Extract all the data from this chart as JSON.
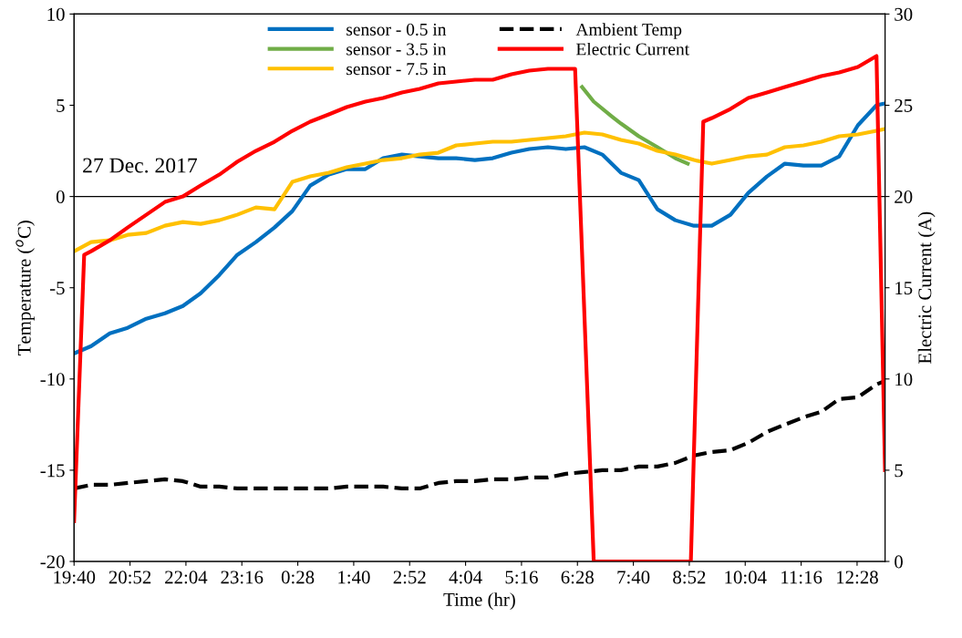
{
  "chart_data": {
    "type": "line",
    "xlabel": "Time (hr)",
    "ylabel": "Temperature ($^{o}$C)",
    "y2label": "Electric Current (A)",
    "annotations": [
      "27 Dec. 2017"
    ],
    "xlim": [
      "2017-12-27T19:40",
      "2017-12-28T13:04"
    ],
    "xticks": [
      {
        "value": "2017-12-27T19:40",
        "label": "19:40"
      },
      {
        "value": "2017-12-27T20:52",
        "label": "20:52"
      },
      {
        "value": "2017-12-27T22:04",
        "label": "22:04"
      },
      {
        "value": "2017-12-27T23:16",
        "label": "23:16"
      },
      {
        "value": "2017-12-28T00:28",
        "label": "0:28"
      },
      {
        "value": "2017-12-28T01:40",
        "label": "1:40"
      },
      {
        "value": "2017-12-28T02:52",
        "label": "2:52"
      },
      {
        "value": "2017-12-28T04:04",
        "label": "4:04"
      },
      {
        "value": "2017-12-28T05:16",
        "label": "5:16"
      },
      {
        "value": "2017-12-28T06:28",
        "label": "6:28"
      },
      {
        "value": "2017-12-28T07:40",
        "label": "7:40"
      },
      {
        "value": "2017-12-28T08:52",
        "label": "8:52"
      },
      {
        "value": "2017-12-28T10:04",
        "label": "10:04"
      },
      {
        "value": "2017-12-28T11:16",
        "label": "11:16"
      },
      {
        "value": "2017-12-28T12:28",
        "label": "12:28"
      }
    ],
    "ylim": [
      -20,
      10
    ],
    "yticks": [
      -20,
      -15,
      -10,
      -5,
      0,
      5,
      10
    ],
    "y2lim": [
      0,
      30
    ],
    "y2ticks": [
      0,
      5,
      10,
      15,
      20,
      25,
      30
    ],
    "ref_lines": [
      {
        "axis": "y",
        "value": 0,
        "color": "#000000"
      }
    ],
    "legend": "top",
    "x": [
      "2017-12-27T19:40",
      "2017-12-27T20:02",
      "2017-12-27T20:26",
      "2017-12-27T20:49",
      "2017-12-27T21:13",
      "2017-12-27T21:37",
      "2017-12-27T22:00",
      "2017-12-27T22:23",
      "2017-12-27T22:47",
      "2017-12-27T23:10",
      "2017-12-27T23:34",
      "2017-12-27T23:58",
      "2017-12-28T00:21",
      "2017-12-28T00:44",
      "2017-12-28T01:08",
      "2017-12-28T01:31",
      "2017-12-28T01:55",
      "2017-12-28T02:18",
      "2017-12-28T02:42",
      "2017-12-28T03:05",
      "2017-12-28T03:29",
      "2017-12-28T03:52",
      "2017-12-28T04:16",
      "2017-12-28T04:39",
      "2017-12-28T05:03",
      "2017-12-28T05:26",
      "2017-12-28T05:50",
      "2017-12-28T06:13",
      "2017-12-28T06:37",
      "2017-12-28T07:00",
      "2017-12-28T07:24",
      "2017-12-28T07:47",
      "2017-12-28T08:11",
      "2017-12-28T08:34",
      "2017-12-28T08:58",
      "2017-12-28T09:21",
      "2017-12-28T09:45",
      "2017-12-28T10:08",
      "2017-12-28T10:32",
      "2017-12-28T10:55",
      "2017-12-28T11:19",
      "2017-12-28T11:42",
      "2017-12-28T12:05",
      "2017-12-28T12:29",
      "2017-12-28T12:53",
      "2017-12-28T13:04"
    ],
    "series": [
      {
        "name": "sensor - 0.5 in",
        "color": "#0070c0",
        "values": [
          -8.6,
          -8.2,
          -7.5,
          -7.2,
          -6.7,
          -6.4,
          -6.0,
          -5.3,
          -4.3,
          -3.2,
          -2.5,
          -1.7,
          -0.8,
          0.6,
          1.2,
          1.5,
          1.5,
          2.1,
          2.3,
          2.2,
          2.1,
          2.1,
          2.0,
          2.1,
          2.4,
          2.6,
          2.7,
          2.6,
          2.7,
          2.3,
          1.3,
          0.9,
          -0.7,
          -1.3,
          -1.6,
          -1.6,
          -1.0,
          0.2,
          1.1,
          1.8,
          1.7,
          1.7,
          2.2,
          3.9,
          5.0,
          5.1
        ]
      },
      {
        "name": "sensor - 3.5 in",
        "color": "#70ad47",
        "x": [
          "2017-12-28T06:34",
          "2017-12-28T06:49",
          "2017-12-28T07:12",
          "2017-12-28T07:24",
          "2017-12-28T07:47",
          "2017-12-28T08:11",
          "2017-12-28T08:34",
          "2017-12-28T08:50"
        ],
        "values": [
          6.0,
          5.2,
          4.4,
          4.0,
          3.3,
          2.7,
          2.1,
          1.8
        ]
      },
      {
        "name": "sensor - 7.5 in",
        "color": "#ffc000",
        "values": [
          -3.0,
          -2.5,
          -2.4,
          -2.1,
          -2.0,
          -1.6,
          -1.4,
          -1.5,
          -1.3,
          -1.0,
          -0.6,
          -0.7,
          0.8,
          1.1,
          1.3,
          1.6,
          1.8,
          2.0,
          2.1,
          2.3,
          2.4,
          2.8,
          2.9,
          3.0,
          3.0,
          3.1,
          3.2,
          3.3,
          3.5,
          3.4,
          3.1,
          2.9,
          2.5,
          2.3,
          2.0,
          1.8,
          2.0,
          2.2,
          2.3,
          2.7,
          2.8,
          3.0,
          3.3,
          3.4,
          3.6,
          3.7
        ]
      },
      {
        "name": "Ambient Temp",
        "color": "#000000",
        "line_style": "dashed",
        "values": [
          -16.0,
          -15.8,
          -15.8,
          -15.7,
          -15.6,
          -15.5,
          -15.6,
          -15.9,
          -15.9,
          -16.0,
          -16.0,
          -16.0,
          -16.0,
          -16.0,
          -16.0,
          -15.9,
          -15.9,
          -15.9,
          -16.0,
          -16.0,
          -15.7,
          -15.6,
          -15.6,
          -15.5,
          -15.5,
          -15.4,
          -15.4,
          -15.2,
          -15.1,
          -15.0,
          -15.0,
          -14.8,
          -14.8,
          -14.6,
          -14.2,
          -14.0,
          -13.9,
          -13.5,
          -12.9,
          -12.5,
          -12.1,
          -11.8,
          -11.1,
          -11.0,
          -10.3,
          -10.1
        ]
      },
      {
        "name": "Electric Current",
        "color": "#ff0000",
        "axis": "y2",
        "x": [
          "2017-12-27T19:40",
          "2017-12-27T19:53",
          "2017-12-27T20:02",
          "2017-12-27T20:26",
          "2017-12-27T20:49",
          "2017-12-27T21:13",
          "2017-12-27T21:37",
          "2017-12-27T22:00",
          "2017-12-27T22:23",
          "2017-12-27T22:47",
          "2017-12-27T23:10",
          "2017-12-27T23:34",
          "2017-12-27T23:58",
          "2017-12-28T00:21",
          "2017-12-28T00:44",
          "2017-12-28T01:08",
          "2017-12-28T01:31",
          "2017-12-28T01:55",
          "2017-12-28T02:18",
          "2017-12-28T02:42",
          "2017-12-28T03:05",
          "2017-12-28T03:29",
          "2017-12-28T03:52",
          "2017-12-28T04:16",
          "2017-12-28T04:39",
          "2017-12-28T05:03",
          "2017-12-28T05:26",
          "2017-12-28T05:50",
          "2017-12-28T06:25",
          "2017-12-28T06:49",
          "2017-12-28T08:54",
          "2017-12-28T09:10",
          "2017-12-28T09:21",
          "2017-12-28T09:45",
          "2017-12-28T10:08",
          "2017-12-28T10:32",
          "2017-12-28T10:55",
          "2017-12-28T11:19",
          "2017-12-28T11:42",
          "2017-12-28T12:05",
          "2017-12-28T12:29",
          "2017-12-28T12:53",
          "2017-12-28T13:04"
        ],
        "values": [
          2.2,
          16.8,
          17.0,
          17.6,
          18.3,
          19.0,
          19.7,
          20.0,
          20.6,
          21.2,
          21.9,
          22.5,
          23.0,
          23.6,
          24.1,
          24.5,
          24.9,
          25.2,
          25.4,
          25.7,
          25.9,
          26.2,
          26.3,
          26.4,
          26.4,
          26.7,
          26.9,
          27.0,
          27.0,
          0,
          0,
          24.1,
          24.3,
          24.8,
          25.4,
          25.7,
          26.0,
          26.3,
          26.6,
          26.8,
          27.1,
          27.7,
          5.0
        ]
      }
    ]
  }
}
